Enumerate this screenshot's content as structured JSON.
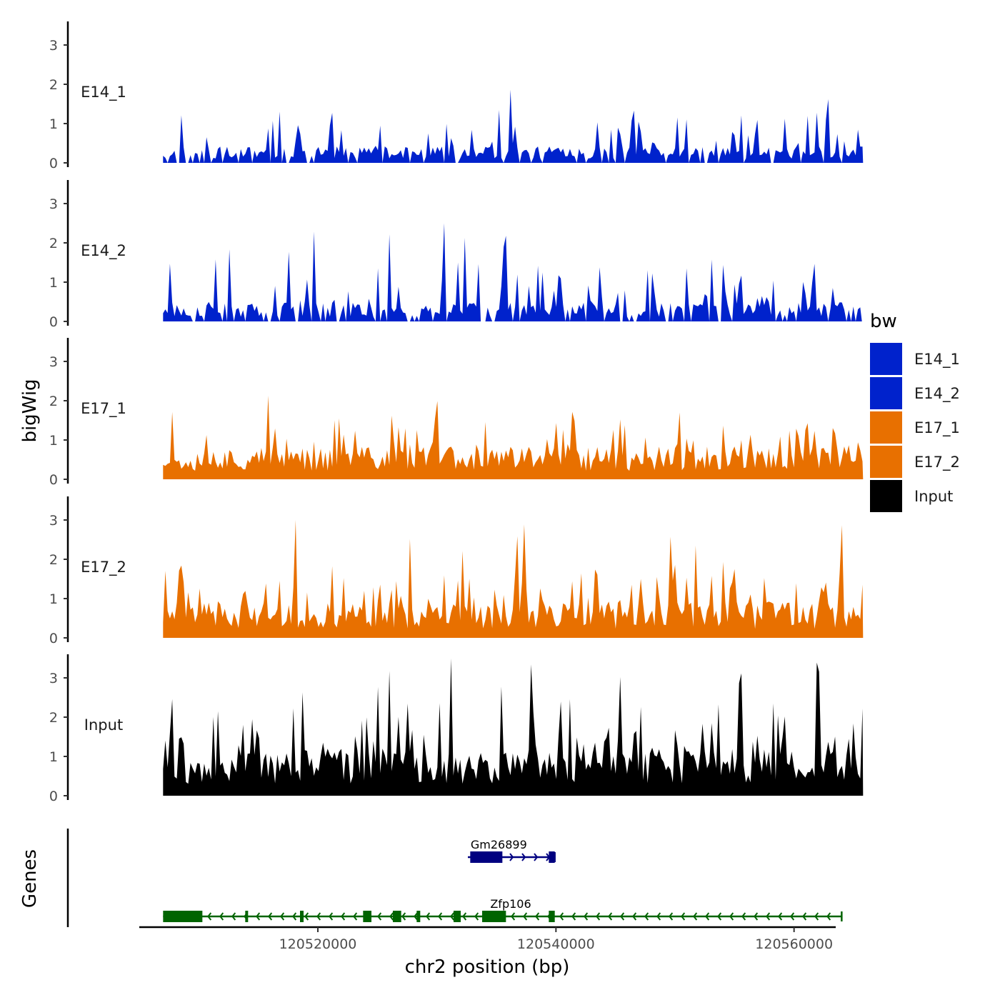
{
  "chart_data": {
    "type": "area",
    "xlabel": "chr2 position (bp)",
    "ylabel": "bigWig",
    "genes_label": "Genes",
    "xlim": [
      120505000,
      120563500
    ],
    "x_ticks": [
      120520000,
      120540000,
      120560000
    ],
    "x_tick_labels": [
      "120520000",
      "120540000",
      "120560000"
    ],
    "y_ticks": [
      0,
      1,
      2,
      3
    ],
    "y_tick_labels": [
      "0",
      "1",
      "2",
      "3"
    ],
    "ylim": [
      0,
      3.6
    ],
    "legend_title": "bw",
    "legend_position": "right",
    "series": [
      {
        "name": "E14_1",
        "color": "#0022cc",
        "start": 120507000,
        "end": 120565800,
        "seed": 11,
        "base": 0.35,
        "spike_prob": 0.22,
        "max": 2.1
      },
      {
        "name": "E14_2",
        "color": "#0022cc",
        "start": 120507000,
        "end": 120565700,
        "seed": 23,
        "base": 0.4,
        "spike_prob": 0.25,
        "max": 2.5
      },
      {
        "name": "E17_1",
        "color": "#e87000",
        "start": 120507000,
        "end": 120565800,
        "seed": 37,
        "base": 0.7,
        "spike_prob": 0.28,
        "max": 2.2
      },
      {
        "name": "E17_2",
        "color": "#e87000",
        "start": 120507000,
        "end": 120565800,
        "seed": 41,
        "base": 0.75,
        "spike_prob": 0.3,
        "max": 3.0
      },
      {
        "name": "Input",
        "color": "#000000",
        "start": 120507000,
        "end": 120565800,
        "seed": 53,
        "base": 1.0,
        "spike_prob": 0.3,
        "max": 3.5
      }
    ],
    "genes": [
      {
        "name": "Gm26899",
        "color": "#000080",
        "start": 120532600,
        "end": 120539900,
        "strand": "+",
        "exons": [
          [
            120532800,
            120535500
          ],
          [
            120539400,
            120539900
          ]
        ]
      },
      {
        "name": "Zfp106",
        "color": "#006400",
        "start": 120507000,
        "end": 120564000,
        "strand": "-",
        "exons": [
          [
            120507000,
            120510300
          ],
          [
            120513900,
            120514100
          ],
          [
            120518500,
            120518800
          ],
          [
            120523800,
            120524500
          ],
          [
            120526300,
            120527000
          ],
          [
            120528300,
            120528600
          ],
          [
            120531400,
            120532000
          ],
          [
            120533800,
            120535800
          ],
          [
            120539400,
            120539900
          ]
        ]
      }
    ]
  }
}
